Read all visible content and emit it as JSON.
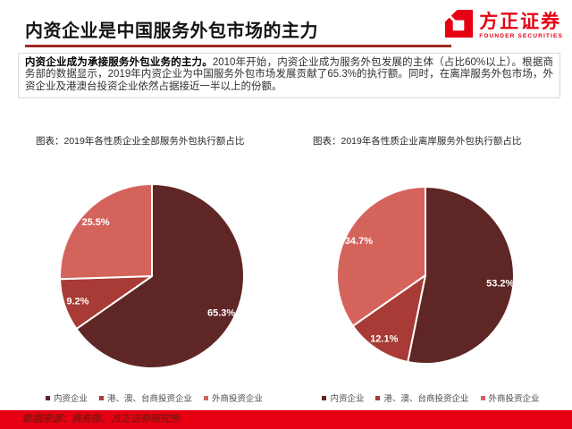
{
  "header": {
    "title": "内资企业是中国服务外包市场的主力",
    "logo": {
      "brand": "方正证券",
      "brand_en": "FOUNDER SECURITIES"
    }
  },
  "summary": {
    "lead": "内资企业成为承接服务外包业务的主力。",
    "body": "2010年开始，内资企业成为服务外包发展的主体（占比60%以上）。根据商务部的数据显示，2019年内资企业为中国服务外包市场发展贡献了65.3%的执行额。同时，在离岸服务外包市场，外资企业及港澳台投资企业依然占据接近一半以上的份额。"
  },
  "colors": {
    "brand_red": "#e60012",
    "title_rule": "#9e2b23",
    "footer_background": "#e60012",
    "footer_text": "#8a1310",
    "pie_dark": "#5e2625",
    "pie_medium": "#a83b35",
    "pie_light": "#d4635c",
    "pie_label": "#ffffff"
  },
  "chart_data": [
    {
      "type": "pie",
      "title": "图表：2019年各性质企业全部服务外包执行额占比",
      "categories": [
        "内资企业",
        "港、澳、台商投资企业",
        "外商投资企业"
      ],
      "values": [
        65.3,
        9.2,
        25.5
      ],
      "labels": [
        "65.3%",
        "9.2%",
        "25.5%"
      ],
      "colors": [
        "#5e2625",
        "#a83b35",
        "#d4635c"
      ],
      "start_angle_deg": 0,
      "direction": "clockwise",
      "legend_position": "bottom",
      "data_label_color": "#ffffff"
    },
    {
      "type": "pie",
      "title": "图表：2019年各性质企业离岸服务外包执行额占比",
      "categories": [
        "内资企业",
        "港、澳、台商投资企业",
        "外商投资企业"
      ],
      "values": [
        53.2,
        12.1,
        34.7
      ],
      "labels": [
        "53.2%",
        "12.1%",
        "34.7%"
      ],
      "colors": [
        "#5e2625",
        "#a83b35",
        "#d4635c"
      ],
      "start_angle_deg": 0,
      "direction": "clockwise",
      "legend_position": "bottom",
      "data_label_color": "#ffffff"
    }
  ],
  "footer": {
    "source": "数据来源：商务部，方正证券研究所"
  }
}
